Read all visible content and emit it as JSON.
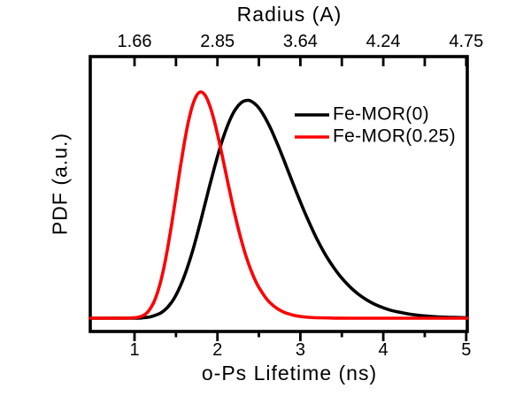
{
  "chart_data": {
    "type": "line",
    "title": "",
    "xlabel": "o-Ps Lifetime (ns)",
    "ylabel": "PDF (a.u.)",
    "top_xlabel": "Radius (A)",
    "xlim": [
      0.47,
      5.01
    ],
    "ylim": [
      0,
      1.05
    ],
    "y_units": "arbitrary units, normalized to Fe-MOR(0.25) peak = 1",
    "grid": false,
    "axis_color": "#000000",
    "background_color": "#ffffff",
    "legend_position": "upper right inside",
    "x_ticks": [
      1,
      2,
      3,
      4,
      5
    ],
    "x_tick_labels": [
      "1",
      "2",
      "3",
      "4",
      "5"
    ],
    "x_minor_ticks": [
      1.5,
      2.5,
      3.5,
      4.5
    ],
    "top_ticks_ns": [
      1,
      1.5,
      2,
      2.5,
      3,
      3.5,
      4,
      4.5,
      5
    ],
    "top_label_positions_ns": [
      1,
      2,
      3,
      4,
      5
    ],
    "top_axis_tick_labels": [
      "1.66",
      "2.85",
      "3.64",
      "4.24",
      "4.75"
    ],
    "series": [
      {
        "name": "Fe-MOR(0)",
        "color": "#000000",
        "peak_x_ns": 2.36,
        "peak_y": 0.963,
        "points": [
          [
            0.47,
            0
          ],
          [
            1.0,
            0.0003
          ],
          [
            1.1,
            0.002
          ],
          [
            1.2,
            0.007
          ],
          [
            1.3,
            0.02
          ],
          [
            1.35,
            0.032
          ],
          [
            1.4,
            0.049
          ],
          [
            1.45,
            0.072
          ],
          [
            1.5,
            0.102
          ],
          [
            1.55,
            0.14
          ],
          [
            1.6,
            0.185
          ],
          [
            1.65,
            0.238
          ],
          [
            1.7,
            0.297
          ],
          [
            1.75,
            0.363
          ],
          [
            1.8,
            0.433
          ],
          [
            1.85,
            0.504
          ],
          [
            1.9,
            0.577
          ],
          [
            1.95,
            0.647
          ],
          [
            2.0,
            0.714
          ],
          [
            2.05,
            0.776
          ],
          [
            2.1,
            0.83
          ],
          [
            2.15,
            0.876
          ],
          [
            2.2,
            0.913
          ],
          [
            2.25,
            0.939
          ],
          [
            2.3,
            0.956
          ],
          [
            2.36,
            0.963
          ],
          [
            2.4,
            0.96
          ],
          [
            2.45,
            0.948
          ],
          [
            2.5,
            0.929
          ],
          [
            2.55,
            0.902
          ],
          [
            2.6,
            0.869
          ],
          [
            2.65,
            0.832
          ],
          [
            2.7,
            0.79
          ],
          [
            2.75,
            0.746
          ],
          [
            2.8,
            0.7
          ],
          [
            2.85,
            0.653
          ],
          [
            2.9,
            0.606
          ],
          [
            2.95,
            0.559
          ],
          [
            3.0,
            0.514
          ],
          [
            3.1,
            0.428
          ],
          [
            3.2,
            0.35
          ],
          [
            3.3,
            0.282
          ],
          [
            3.4,
            0.225
          ],
          [
            3.5,
            0.177
          ],
          [
            3.6,
            0.138
          ],
          [
            3.7,
            0.106
          ],
          [
            3.8,
            0.081
          ],
          [
            3.9,
            0.061
          ],
          [
            4.0,
            0.046
          ],
          [
            4.1,
            0.034
          ],
          [
            4.2,
            0.026
          ],
          [
            4.3,
            0.019
          ],
          [
            4.4,
            0.014
          ],
          [
            4.5,
            0.01
          ],
          [
            4.6,
            0.007
          ],
          [
            4.7,
            0.005
          ],
          [
            4.8,
            0.004
          ],
          [
            4.9,
            0.003
          ],
          [
            5.01,
            0.002
          ]
        ]
      },
      {
        "name": "Fe-MOR(0.25)",
        "color": "#fe0000",
        "peak_x_ns": 1.8,
        "peak_y": 1.0,
        "points": [
          [
            0.47,
            0
          ],
          [
            0.8,
            0
          ],
          [
            0.9,
            0.0002
          ],
          [
            1.0,
            0.002
          ],
          [
            1.05,
            0.005
          ],
          [
            1.1,
            0.011
          ],
          [
            1.15,
            0.024
          ],
          [
            1.2,
            0.048
          ],
          [
            1.25,
            0.085
          ],
          [
            1.3,
            0.141
          ],
          [
            1.35,
            0.216
          ],
          [
            1.4,
            0.311
          ],
          [
            1.45,
            0.421
          ],
          [
            1.5,
            0.54
          ],
          [
            1.55,
            0.661
          ],
          [
            1.6,
            0.773
          ],
          [
            1.65,
            0.869
          ],
          [
            1.7,
            0.941
          ],
          [
            1.75,
            0.985
          ],
          [
            1.8,
            1.0
          ],
          [
            1.85,
            0.986
          ],
          [
            1.9,
            0.947
          ],
          [
            1.95,
            0.888
          ],
          [
            2.0,
            0.814
          ],
          [
            2.05,
            0.731
          ],
          [
            2.1,
            0.644
          ],
          [
            2.15,
            0.557
          ],
          [
            2.2,
            0.474
          ],
          [
            2.25,
            0.398
          ],
          [
            2.3,
            0.329
          ],
          [
            2.35,
            0.268
          ],
          [
            2.4,
            0.216
          ],
          [
            2.45,
            0.172
          ],
          [
            2.5,
            0.136
          ],
          [
            2.6,
            0.082
          ],
          [
            2.7,
            0.048
          ],
          [
            2.8,
            0.027
          ],
          [
            2.9,
            0.015
          ],
          [
            3.0,
            0.008
          ],
          [
            3.1,
            0.004
          ],
          [
            3.2,
            0.002
          ],
          [
            3.35,
            0.001
          ],
          [
            3.6,
            0
          ],
          [
            5.01,
            0
          ]
        ]
      }
    ]
  }
}
